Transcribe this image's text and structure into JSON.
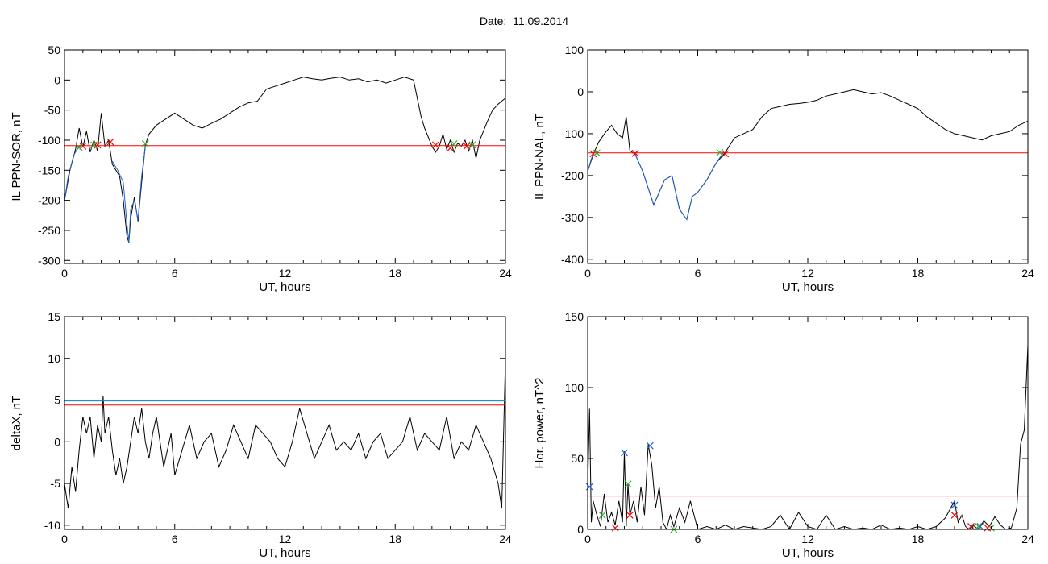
{
  "figure": {
    "title_label": "Date:",
    "title_value": "11.09.2014"
  },
  "chart_data": [
    {
      "type": "line",
      "ylabel": "IL PPN-SOR, nT",
      "xlabel": "UT, hours",
      "xlim": [
        0,
        24
      ],
      "ylim": [
        -305,
        50
      ],
      "xticks": [
        0,
        6,
        12,
        18,
        24
      ],
      "yticks": [
        50,
        0,
        -50,
        -100,
        -150,
        -200,
        -250,
        -300
      ],
      "grid": false,
      "series": [
        {
          "color": "#000000",
          "x": [
            0,
            0.3,
            0.6,
            0.8,
            1.0,
            1.2,
            1.4,
            1.6,
            1.8,
            2.0,
            2.2,
            2.4,
            2.6,
            2.8,
            3.0,
            3.2,
            3.4,
            3.5,
            3.6,
            3.8,
            4.0,
            4.2,
            4.4,
            4.6,
            5.0,
            5.5,
            6.0,
            6.5,
            7.0,
            7.5,
            8.0,
            8.5,
            9.0,
            9.5,
            10.0,
            10.5,
            11.0,
            11.5,
            12.0,
            12.5,
            13.0,
            13.5,
            14.0,
            14.5,
            15.0,
            15.5,
            16.0,
            16.5,
            17.0,
            17.5,
            18.0,
            18.5,
            19.0,
            19.4,
            19.6,
            19.8,
            20.0,
            20.2,
            20.4,
            20.6,
            20.8,
            21.0,
            21.2,
            21.4,
            21.6,
            21.8,
            22.0,
            22.2,
            22.4,
            22.6,
            22.8,
            23.0,
            23.3,
            23.6,
            23.8,
            24.0
          ],
          "values": [
            -200,
            -150,
            -115,
            -80,
            -112,
            -85,
            -120,
            -100,
            -118,
            -55,
            -110,
            -100,
            -140,
            -150,
            -160,
            -200,
            -260,
            -270,
            -230,
            -195,
            -235,
            -170,
            -108,
            -90,
            -75,
            -65,
            -55,
            -65,
            -75,
            -80,
            -72,
            -65,
            -55,
            -45,
            -38,
            -35,
            -15,
            -10,
            -5,
            0,
            5,
            2,
            0,
            3,
            5,
            0,
            2,
            -3,
            0,
            -5,
            0,
            5,
            0,
            -60,
            -80,
            -95,
            -110,
            -120,
            -110,
            -90,
            -115,
            -100,
            -120,
            -105,
            -110,
            -100,
            -118,
            -100,
            -130,
            -100,
            -85,
            -70,
            -50,
            -40,
            -35,
            -30
          ]
        },
        {
          "color": "#1f5fd0",
          "x": [
            0,
            0.2,
            0.5,
            0.8,
            1.0
          ],
          "values": [
            -200,
            -160,
            -125,
            -110,
            -105
          ]
        },
        {
          "color": "#1f5fd0",
          "x": [
            2.6,
            2.9,
            3.2,
            3.4,
            3.5,
            3.6,
            3.8,
            4.0,
            4.2,
            4.4
          ],
          "values": [
            -135,
            -150,
            -170,
            -240,
            -270,
            -215,
            -200,
            -232,
            -160,
            -110
          ]
        },
        {
          "color": "#ff0000",
          "x": [
            0,
            24
          ],
          "values": [
            -109,
            -109
          ]
        }
      ],
      "markers": [
        {
          "color": "#ff0000",
          "x": [
            1.0,
            1.8,
            2.5,
            20.2,
            21.0,
            21.9
          ],
          "values": [
            -110,
            -108,
            -103,
            -108,
            -113,
            -110
          ]
        },
        {
          "color": "#2db02d",
          "x": [
            0.8,
            1.6,
            4.4,
            21.2,
            22.2
          ],
          "values": [
            -112,
            -108,
            -106,
            -106,
            -108
          ]
        }
      ]
    },
    {
      "type": "line",
      "ylabel": "IL PPN-NAL, nT",
      "xlabel": "UT, hours",
      "xlim": [
        0,
        24
      ],
      "ylim": [
        -410,
        100
      ],
      "xticks": [
        0,
        6,
        12,
        18,
        24
      ],
      "yticks": [
        100,
        0,
        -100,
        -200,
        -300,
        -400
      ],
      "grid": false,
      "series": [
        {
          "color": "#000000",
          "x": [
            0,
            0.3,
            0.6,
            1.0,
            1.3,
            1.6,
            1.9,
            2.1,
            2.3,
            2.6,
            3.0,
            3.3,
            3.6,
            3.9,
            4.2,
            4.6,
            5.0,
            5.4,
            5.7,
            6.0,
            6.5,
            7.0,
            7.5,
            8.0,
            8.5,
            9.0,
            9.5,
            10.0,
            10.5,
            11.0,
            11.5,
            12.0,
            12.5,
            13.0,
            13.5,
            14.0,
            14.5,
            15.0,
            15.5,
            16.0,
            16.5,
            17.0,
            17.5,
            18.0,
            18.5,
            19.0,
            19.5,
            20.0,
            20.5,
            21.0,
            21.5,
            22.0,
            22.5,
            23.0,
            23.5,
            24.0
          ],
          "values": [
            -190,
            -150,
            -120,
            -95,
            -80,
            -100,
            -110,
            -60,
            -140,
            -150,
            -190,
            -230,
            -270,
            -240,
            -210,
            -200,
            -280,
            -305,
            -250,
            -240,
            -210,
            -170,
            -145,
            -110,
            -100,
            -90,
            -60,
            -40,
            -35,
            -30,
            -28,
            -25,
            -20,
            -10,
            -5,
            0,
            5,
            0,
            -5,
            -2,
            -10,
            -20,
            -30,
            -40,
            -60,
            -75,
            -90,
            -100,
            -105,
            -110,
            -115,
            -105,
            -100,
            -95,
            -80,
            -70
          ]
        },
        {
          "color": "#1f5fd0",
          "x": [
            0,
            0.2,
            0.4,
            0.6
          ],
          "values": [
            -190,
            -160,
            -140,
            -145
          ]
        },
        {
          "color": "#1f5fd0",
          "x": [
            2.6,
            3.0,
            3.3,
            3.6,
            3.9,
            4.2,
            4.6,
            5.0,
            5.4,
            5.7,
            6.0,
            6.5,
            7.0,
            7.4
          ],
          "values": [
            -150,
            -190,
            -230,
            -270,
            -240,
            -210,
            -200,
            -280,
            -305,
            -250,
            -240,
            -210,
            -170,
            -145
          ]
        },
        {
          "color": "#ff0000",
          "x": [
            0,
            24
          ],
          "values": [
            -146,
            -146
          ]
        }
      ],
      "markers": [
        {
          "color": "#ff0000",
          "x": [
            0.3,
            2.6,
            7.5
          ],
          "values": [
            -148,
            -147,
            -148
          ]
        },
        {
          "color": "#2db02d",
          "x": [
            0.5,
            7.2
          ],
          "values": [
            -146,
            -145
          ]
        }
      ]
    },
    {
      "type": "line",
      "ylabel": "deltaX, nT",
      "xlabel": "UT, hours",
      "xlim": [
        0,
        24
      ],
      "ylim": [
        -10.5,
        15
      ],
      "xticks": [
        0,
        6,
        12,
        18,
        24
      ],
      "yticks": [
        15,
        10,
        5,
        0,
        -5,
        -10
      ],
      "grid": false,
      "series": [
        {
          "color": "#000000",
          "x": [
            0,
            0.2,
            0.4,
            0.6,
            0.8,
            1.0,
            1.2,
            1.4,
            1.6,
            1.8,
            2.0,
            2.1,
            2.2,
            2.4,
            2.6,
            2.8,
            3.0,
            3.2,
            3.4,
            3.6,
            3.8,
            4.0,
            4.2,
            4.4,
            4.6,
            4.8,
            5.0,
            5.2,
            5.4,
            5.6,
            5.8,
            6.0,
            6.4,
            6.8,
            7.2,
            7.6,
            8.0,
            8.4,
            8.8,
            9.2,
            9.6,
            10.0,
            10.4,
            10.8,
            11.2,
            11.6,
            12.0,
            12.4,
            12.8,
            13.2,
            13.6,
            14.0,
            14.4,
            14.8,
            15.2,
            15.6,
            16.0,
            16.4,
            16.8,
            17.2,
            17.6,
            18.0,
            18.4,
            18.8,
            19.2,
            19.6,
            20.0,
            20.4,
            20.8,
            21.2,
            21.6,
            22.0,
            22.4,
            22.8,
            23.2,
            23.6,
            23.8,
            24.0
          ],
          "values": [
            -5,
            -8,
            -3,
            -6,
            -1,
            3,
            1,
            3,
            -2,
            2,
            0,
            5.5,
            1,
            3,
            -1,
            -4,
            -2,
            -5,
            -3,
            0,
            3,
            1,
            4,
            0,
            -2,
            1,
            3,
            0,
            -3,
            -1,
            1,
            -4,
            -1,
            2,
            -2,
            0,
            1,
            -3,
            -1,
            2,
            0,
            -2,
            2,
            1,
            0,
            -2,
            -3,
            0,
            4,
            1,
            -2,
            0,
            2,
            -1,
            0,
            -1,
            1,
            -2,
            0,
            1,
            -2,
            -1,
            0,
            3,
            -1,
            1,
            0,
            -1,
            3,
            -2,
            0,
            -1,
            2,
            0,
            -2,
            -5,
            -8,
            10
          ]
        },
        {
          "color": "#0080c0",
          "x": [
            0,
            24
          ],
          "values": [
            4.9,
            4.9
          ]
        },
        {
          "color": "#ff0000",
          "x": [
            0,
            24
          ],
          "values": [
            4.4,
            4.4
          ]
        }
      ],
      "markers": []
    },
    {
      "type": "line",
      "ylabel": "Hor. power, nT^2",
      "xlabel": "UT, hours",
      "xlim": [
        0,
        24
      ],
      "ylim": [
        0,
        150
      ],
      "xticks": [
        0,
        6,
        12,
        18,
        24
      ],
      "yticks": [
        150,
        100,
        50,
        0
      ],
      "grid": false,
      "series": [
        {
          "color": "#000000",
          "x": [
            0,
            0.1,
            0.2,
            0.3,
            0.5,
            0.7,
            0.9,
            1.1,
            1.3,
            1.5,
            1.7,
            1.9,
            2.0,
            2.1,
            2.2,
            2.3,
            2.5,
            2.7,
            2.9,
            3.1,
            3.3,
            3.5,
            3.7,
            3.9,
            4.1,
            4.3,
            4.5,
            4.7,
            5.0,
            5.3,
            5.6,
            6.0,
            6.5,
            7.0,
            7.5,
            8.0,
            8.5,
            9.0,
            9.5,
            10.0,
            10.5,
            11.0,
            11.5,
            12.0,
            12.5,
            13.0,
            13.5,
            14.0,
            14.5,
            15.0,
            15.5,
            16.0,
            16.5,
            17.0,
            17.5,
            18.0,
            18.5,
            19.0,
            19.5,
            20.0,
            20.2,
            20.4,
            20.6,
            20.8,
            21.0,
            21.3,
            21.6,
            21.9,
            22.2,
            22.5,
            22.8,
            23.1,
            23.4,
            23.6,
            23.8,
            24.0
          ],
          "values": [
            30,
            85,
            5,
            20,
            10,
            2,
            25,
            5,
            12,
            3,
            20,
            5,
            55,
            2,
            32,
            10,
            20,
            5,
            30,
            10,
            60,
            45,
            15,
            30,
            5,
            0,
            10,
            2,
            15,
            5,
            20,
            0,
            2,
            0,
            3,
            0,
            2,
            1,
            0,
            2,
            10,
            0,
            12,
            2,
            0,
            10,
            0,
            2,
            0,
            1,
            0,
            3,
            0,
            1,
            0,
            2,
            0,
            2,
            8,
            20,
            5,
            10,
            2,
            0,
            3,
            0,
            6,
            2,
            9,
            3,
            0,
            1,
            15,
            60,
            70,
            130
          ]
        },
        {
          "color": "#ff0000",
          "x": [
            0,
            24
          ],
          "values": [
            23.5,
            23.5
          ]
        }
      ],
      "markers": [
        {
          "color": "#1f5fd0",
          "x": [
            0.1,
            2.0,
            3.4,
            20.0,
            21.4
          ],
          "values": [
            30,
            54,
            59,
            17,
            2
          ]
        },
        {
          "color": "#2db02d",
          "x": [
            0.8,
            2.2,
            4.7,
            21.3,
            22.0
          ],
          "values": [
            10,
            32,
            0,
            2,
            1
          ]
        },
        {
          "color": "#ff0000",
          "x": [
            1.5,
            2.3,
            20.0,
            20.9,
            21.8
          ],
          "values": [
            1,
            10,
            10,
            2,
            1
          ]
        }
      ]
    }
  ]
}
